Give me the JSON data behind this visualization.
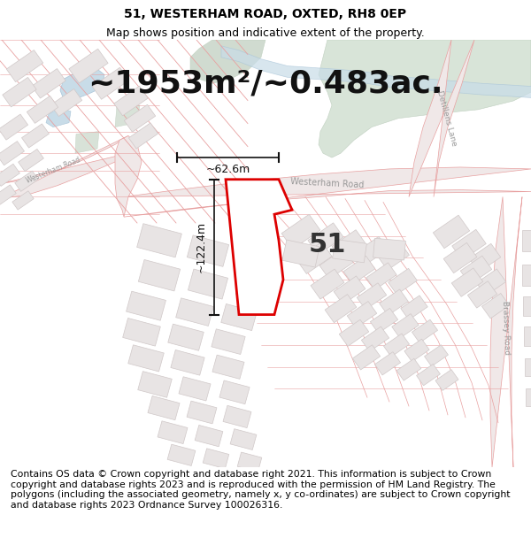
{
  "title": "51, WESTERHAM ROAD, OXTED, RH8 0EP",
  "subtitle": "Map shows position and indicative extent of the property.",
  "area_text": "~1953m²/~0.483ac.",
  "dim_width": "~62.6m",
  "dim_height": "~122.4m",
  "label_51": "51",
  "footer": "Contains OS data © Crown copyright and database right 2021. This information is subject to Crown copyright and database rights 2023 and is reproduced with the permission of HM Land Registry. The polygons (including the associated geometry, namely x, y co-ordinates) are subject to Crown copyright and database rights 2023 Ordnance Survey 100026316.",
  "bg_color": "#ffffff",
  "road_outline": "#e8a0a0",
  "road_fill": "#f5eded",
  "plot_line": "#e8a0a0",
  "building_fill": "#e8e4e4",
  "building_edge": "#d0c8c8",
  "highlight_red": "#dd0000",
  "dim_color": "#111111",
  "green_fill": "#d8e4d8",
  "green_edge": "#c0d0c0",
  "water_fill": "#c8dce8",
  "water_edge": "#a8c4d8",
  "title_fontsize": 10,
  "subtitle_fontsize": 9,
  "area_fontsize": 26,
  "label_fontsize": 22,
  "footer_fontsize": 7.8,
  "dim_fontsize": 9
}
